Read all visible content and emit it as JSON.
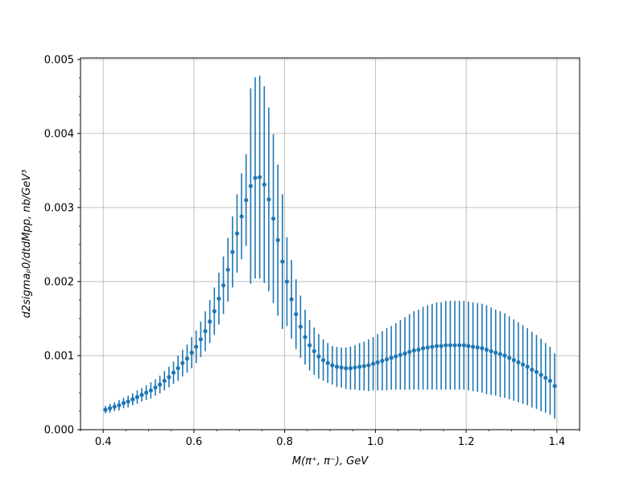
{
  "chart_data": {
    "type": "scatter",
    "title": "",
    "xlabel": "M(π⁺, π⁻), GeV",
    "ylabel": "d2sigmaₚ0/dtdMpp, nb/GeV³",
    "xlim": [
      0.35,
      1.45
    ],
    "ylim": [
      0.0,
      0.00502
    ],
    "xticks": [
      0.4,
      0.6,
      0.8,
      1.0,
      1.2,
      1.4
    ],
    "xtick_labels": [
      "0.4",
      "0.6",
      "0.8",
      "1.0",
      "1.2",
      "1.4"
    ],
    "yticks": [
      0.0,
      0.001,
      0.002,
      0.003,
      0.004,
      0.005
    ],
    "ytick_labels": [
      "0.000",
      "0.001",
      "0.002",
      "0.003",
      "0.004",
      "0.005"
    ],
    "grid": true,
    "color": "#1f77b4",
    "series": [
      {
        "x": [
          0.405,
          0.415,
          0.425,
          0.435,
          0.445,
          0.455,
          0.465,
          0.475,
          0.485,
          0.495,
          0.505,
          0.515,
          0.525,
          0.535,
          0.545,
          0.555,
          0.565,
          0.575,
          0.585,
          0.595,
          0.605,
          0.615,
          0.625,
          0.635,
          0.645,
          0.655,
          0.665,
          0.675,
          0.685,
          0.695,
          0.705,
          0.715,
          0.725,
          0.735,
          0.745,
          0.755,
          0.765,
          0.775,
          0.785,
          0.795,
          0.805,
          0.815,
          0.825,
          0.835,
          0.845,
          0.855,
          0.865,
          0.875,
          0.885,
          0.895,
          0.905,
          0.915,
          0.925,
          0.935,
          0.945,
          0.955,
          0.965,
          0.975,
          0.985,
          0.995,
          1.005,
          1.015,
          1.025,
          1.035,
          1.045,
          1.055,
          1.065,
          1.075,
          1.085,
          1.095,
          1.105,
          1.115,
          1.125,
          1.135,
          1.145,
          1.155,
          1.165,
          1.175,
          1.185,
          1.195,
          1.205,
          1.215,
          1.225,
          1.235,
          1.245,
          1.255,
          1.265,
          1.275,
          1.285,
          1.295,
          1.305,
          1.315,
          1.325,
          1.335,
          1.345,
          1.355,
          1.365,
          1.375,
          1.385,
          1.395
        ],
        "y": [
          0.00027,
          0.00029,
          0.00031,
          0.00033,
          0.00036,
          0.00038,
          0.00041,
          0.00044,
          0.00047,
          0.0005,
          0.00053,
          0.00057,
          0.00061,
          0.00066,
          0.00071,
          0.00077,
          0.00083,
          0.0009,
          0.00096,
          0.00104,
          0.00112,
          0.00122,
          0.00133,
          0.00146,
          0.0016,
          0.00177,
          0.00195,
          0.00216,
          0.0024,
          0.00265,
          0.00288,
          0.0031,
          0.00329,
          0.0034,
          0.00341,
          0.00331,
          0.00311,
          0.00285,
          0.00256,
          0.00227,
          0.002,
          0.00176,
          0.00156,
          0.00139,
          0.00125,
          0.00114,
          0.00106,
          0.00099,
          0.00094,
          0.0009,
          0.00087,
          0.00085,
          0.00084,
          0.00083,
          0.00083,
          0.00084,
          0.00085,
          0.00086,
          0.00087,
          0.00089,
          0.00091,
          0.00093,
          0.00095,
          0.00097,
          0.00099,
          0.00101,
          0.00103,
          0.00105,
          0.00107,
          0.00108,
          0.0011,
          0.00111,
          0.00112,
          0.00113,
          0.00113,
          0.00114,
          0.00114,
          0.00114,
          0.00114,
          0.00114,
          0.00113,
          0.00112,
          0.00111,
          0.0011,
          0.00108,
          0.00106,
          0.00104,
          0.00102,
          0.001,
          0.00097,
          0.00094,
          0.00091,
          0.00088,
          0.00085,
          0.00081,
          0.00078,
          0.00074,
          0.0007,
          0.00066,
          0.00059
        ],
        "yerr": [
          5e-05,
          6e-05,
          6e-05,
          7e-05,
          7e-05,
          8e-05,
          8e-05,
          9e-05,
          9e-05,
          0.0001,
          0.00011,
          0.00011,
          0.00012,
          0.00013,
          0.00014,
          0.00015,
          0.00017,
          0.00018,
          0.00019,
          0.00021,
          0.00022,
          0.00024,
          0.00027,
          0.00029,
          0.00032,
          0.00035,
          0.00039,
          0.00043,
          0.00048,
          0.00053,
          0.00058,
          0.00062,
          0.00132,
          0.00136,
          0.00137,
          0.00133,
          0.00124,
          0.00114,
          0.00102,
          0.00091,
          0.0006,
          0.00053,
          0.00047,
          0.00042,
          0.00037,
          0.00034,
          0.00032,
          0.0003,
          0.00028,
          0.00027,
          0.00026,
          0.00027,
          0.00027,
          0.00028,
          0.00029,
          0.0003,
          0.00032,
          0.00033,
          0.00035,
          0.00036,
          0.00038,
          0.0004,
          0.00042,
          0.00043,
          0.00045,
          0.00047,
          0.00049,
          0.00051,
          0.00053,
          0.00054,
          0.00056,
          0.00057,
          0.00058,
          0.00059,
          0.00059,
          0.0006,
          0.0006,
          0.0006,
          0.0006,
          0.0006,
          0.0006,
          0.0006,
          0.0006,
          0.0006,
          0.0006,
          0.00059,
          0.00058,
          0.00058,
          0.00057,
          0.00056,
          0.00055,
          0.00054,
          0.00053,
          0.00052,
          0.00051,
          0.0005,
          0.00049,
          0.00047,
          0.00046,
          0.00044
        ]
      }
    ]
  }
}
